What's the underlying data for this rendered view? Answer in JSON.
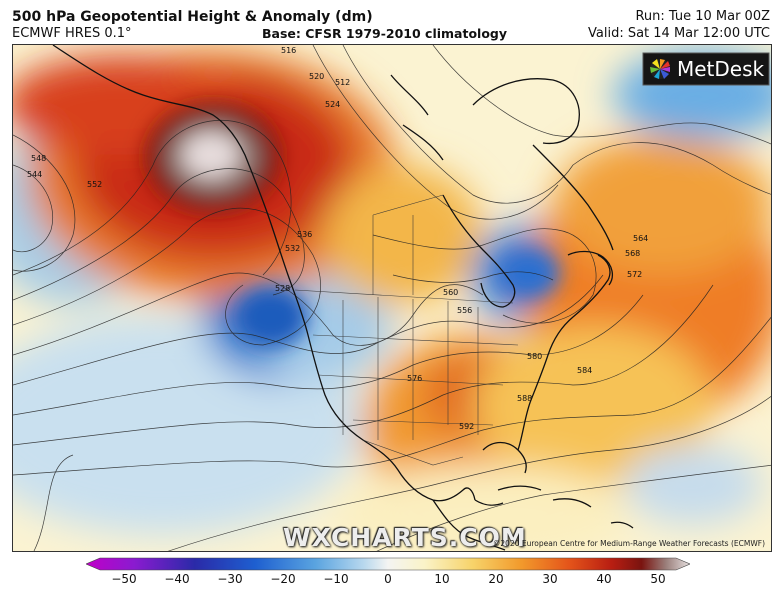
{
  "header": {
    "title": "500 hPa Geopotential Height & Anomaly (dm)",
    "model": "ECMWF HRES 0.1°",
    "base": "Base: CFSR 1979-2010 climatology",
    "run": "Run: Tue 10 Mar 00Z",
    "valid": "Valid: Sat 14 Mar 12:00 UTC"
  },
  "logo": {
    "text": "MetDesk",
    "icon": "metdesk-pinwheel-icon"
  },
  "watermark": "WXCHARTS.COM",
  "copyright": "©2020 European Centre for Medium-Range Weather Forecasts (ECMWF)",
  "contour_labels": [
    "516",
    "512",
    "520",
    "524",
    "548",
    "544",
    "552",
    "536",
    "532",
    "528",
    "556",
    "560",
    "564",
    "568",
    "572",
    "576",
    "580",
    "584",
    "588",
    "592"
  ],
  "colorbar": {
    "ticks": [
      "−50",
      "−40",
      "−30",
      "−20",
      "−10",
      "0",
      "10",
      "20",
      "30",
      "40",
      "50"
    ],
    "colors": [
      "#c000c8",
      "#8a1bd0",
      "#2a2aa8",
      "#1e5fd0",
      "#5aa4e0",
      "#b8d8ee",
      "#eef3f6",
      "#faf3c8",
      "#f7d36a",
      "#f29a2c",
      "#e4541a",
      "#b81e12",
      "#7a1410",
      "#9a7e7a",
      "#e6e0e0"
    ]
  }
}
